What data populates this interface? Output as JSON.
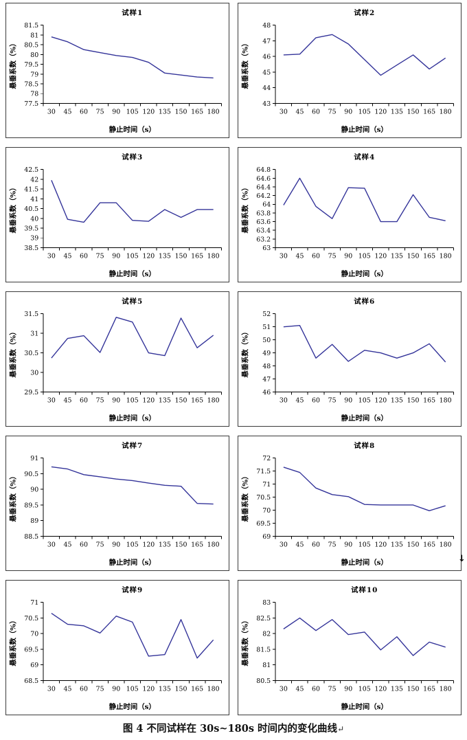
{
  "page": {
    "caption": "图 4  不同试样在 30s~180s 时间内的变化曲线",
    "caption_end_mark": "↵",
    "stray_mark": "↓"
  },
  "style": {
    "line_color": "#333399",
    "axis_color": "#000000",
    "border_color": "#3a3a3a"
  },
  "chart_data": [
    {
      "type": "line",
      "title": "试样1",
      "xlabel": "静止时间（s）",
      "ylabel": "悬垂系数（%）",
      "x": [
        30,
        45,
        60,
        75,
        90,
        105,
        120,
        135,
        150,
        165,
        180
      ],
      "values": [
        80.9,
        80.65,
        80.25,
        80.1,
        79.95,
        79.85,
        79.6,
        79.05,
        78.95,
        78.85,
        78.8
      ],
      "ylim": [
        77.5,
        81.5
      ],
      "ystep": 0.5,
      "grid": false,
      "legend": null
    },
    {
      "type": "line",
      "title": "试样2",
      "xlabel": "静止时间（s）",
      "ylabel": "悬垂系数（%）",
      "x": [
        30,
        45,
        60,
        75,
        90,
        105,
        120,
        135,
        150,
        165,
        180
      ],
      "values": [
        46.1,
        46.15,
        47.2,
        47.4,
        46.8,
        45.8,
        44.8,
        45.45,
        46.1,
        45.2,
        45.9
      ],
      "ylim": [
        43,
        48
      ],
      "ystep": 1,
      "grid": false,
      "legend": null
    },
    {
      "type": "line",
      "title": "试样3",
      "xlabel": "静止时间（s）",
      "ylabel": "悬垂系数（%）",
      "x": [
        30,
        45,
        60,
        75,
        90,
        105,
        120,
        135,
        150,
        165,
        180
      ],
      "values": [
        41.95,
        39.95,
        39.8,
        40.8,
        40.8,
        39.9,
        39.85,
        40.45,
        40.05,
        40.45,
        40.45
      ],
      "ylim": [
        38.5,
        42.5
      ],
      "ystep": 0.5,
      "grid": false,
      "legend": null
    },
    {
      "type": "line",
      "title": "试样4",
      "xlabel": "静止时间（s）",
      "ylabel": "悬垂系数（%）",
      "x": [
        30,
        45,
        60,
        75,
        90,
        105,
        120,
        135,
        150,
        165,
        180
      ],
      "values": [
        63.98,
        64.6,
        63.95,
        63.67,
        64.38,
        64.37,
        63.6,
        63.6,
        64.22,
        63.7,
        63.62
      ],
      "ylim": [
        63,
        64.8
      ],
      "ystep": 0.2,
      "grid": false,
      "legend": null
    },
    {
      "type": "line",
      "title": "试样5",
      "xlabel": "静止时间（s）",
      "ylabel": "悬垂系数（%）",
      "x": [
        30,
        45,
        60,
        75,
        90,
        105,
        120,
        135,
        150,
        165,
        180
      ],
      "values": [
        30.37,
        30.87,
        30.94,
        30.51,
        31.41,
        31.29,
        30.5,
        30.43,
        31.39,
        30.63,
        30.95
      ],
      "ylim": [
        29.5,
        31.5
      ],
      "ystep": 0.5,
      "grid": false,
      "legend": null
    },
    {
      "type": "line",
      "title": "试样6",
      "xlabel": "静止时间（s）",
      "ylabel": "悬垂系数（%）",
      "x": [
        30,
        45,
        60,
        75,
        90,
        105,
        120,
        135,
        150,
        165,
        180
      ],
      "values": [
        51.0,
        51.1,
        48.6,
        49.65,
        48.35,
        49.2,
        49.0,
        48.6,
        49.0,
        49.7,
        48.3
      ],
      "ylim": [
        46,
        52
      ],
      "ystep": 1,
      "grid": false,
      "legend": null
    },
    {
      "type": "line",
      "title": "试样7",
      "xlabel": "静止时间（s）",
      "ylabel": "悬垂系数（%）",
      "x": [
        30,
        45,
        60,
        75,
        90,
        105,
        120,
        135,
        150,
        165,
        180
      ],
      "values": [
        90.72,
        90.65,
        90.47,
        90.4,
        90.33,
        90.28,
        90.2,
        90.13,
        90.1,
        89.55,
        89.53
      ],
      "ylim": [
        88.5,
        91
      ],
      "ystep": 0.5,
      "grid": false,
      "legend": null
    },
    {
      "type": "line",
      "title": "试样8",
      "xlabel": "静止时间（s）",
      "ylabel": "悬垂系数（%）",
      "x": [
        30,
        45,
        60,
        75,
        90,
        105,
        120,
        135,
        150,
        165,
        180
      ],
      "values": [
        71.65,
        71.45,
        70.85,
        70.6,
        70.52,
        70.22,
        70.2,
        70.2,
        70.2,
        69.98,
        70.17
      ],
      "ylim": [
        69,
        72
      ],
      "ystep": 0.5,
      "grid": false,
      "legend": null
    },
    {
      "type": "line",
      "title": "试样9",
      "xlabel": "静止时间（s）",
      "ylabel": "悬垂系数（%）",
      "x": [
        30,
        45,
        60,
        75,
        90,
        105,
        120,
        135,
        150,
        165,
        180
      ],
      "values": [
        70.65,
        70.3,
        70.25,
        70.02,
        70.56,
        70.37,
        69.28,
        69.33,
        70.45,
        69.22,
        69.8
      ],
      "ylim": [
        68.5,
        71
      ],
      "ystep": 0.5,
      "grid": false,
      "legend": null
    },
    {
      "type": "line",
      "title": "试样10",
      "xlabel": "静止时间（s）",
      "ylabel": "悬垂系数（%）",
      "x": [
        30,
        45,
        60,
        75,
        90,
        105,
        120,
        135,
        150,
        165,
        180
      ],
      "values": [
        82.15,
        82.5,
        82.1,
        82.45,
        81.97,
        82.05,
        81.48,
        81.9,
        81.3,
        81.73,
        81.57
      ],
      "ylim": [
        80.5,
        83
      ],
      "ystep": 0.5,
      "grid": false,
      "legend": null
    }
  ]
}
